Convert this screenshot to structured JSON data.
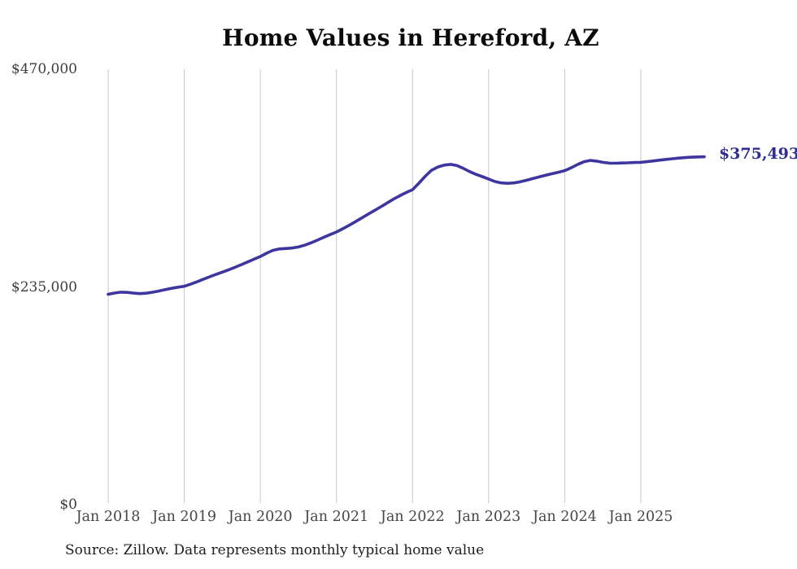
{
  "chart": {
    "title": "Home Values in Hereford, AZ",
    "source": "Source: Zillow. Data represents monthly typical home value",
    "end_label": "$375,493",
    "colors": {
      "line": "#3d36a0",
      "end_label_text": "#322e91",
      "grid": "#c9c9c9",
      "y_axis_text": "#3d3d3d",
      "x_axis_text": "#464646",
      "title_text": "#0a0a0a",
      "source_text": "#1d1d1d",
      "background": "#ffffff"
    }
  },
  "chart_data": {
    "type": "line",
    "title": "Home Values in Hereford, AZ",
    "frequency": "monthly",
    "x_start": "2018-01",
    "x_end": "2025-11",
    "x_tick_labels": [
      "Jan 2018",
      "Jan 2019",
      "Jan 2020",
      "Jan 2021",
      "Jan 2022",
      "Jan 2023",
      "Jan 2024",
      "Jan 2025"
    ],
    "y_ticks": [
      0,
      235000,
      470000
    ],
    "y_tick_labels": [
      "$0",
      "$235,000",
      "$470,000"
    ],
    "ylim": [
      0,
      470000
    ],
    "grid": "vertical-only",
    "legend": "none",
    "final_value": 375493,
    "final_value_label": "$375,493",
    "series": [
      {
        "name": "Typical home value",
        "values": [
          227100,
          228400,
          229400,
          229100,
          228300,
          227800,
          228200,
          229300,
          230600,
          232100,
          233500,
          234700,
          235700,
          238000,
          240500,
          243300,
          246000,
          248500,
          251000,
          253500,
          256200,
          259100,
          262000,
          265000,
          267900,
          271500,
          274500,
          276000,
          276500,
          277000,
          278100,
          280100,
          282600,
          285500,
          288600,
          291500,
          294300,
          297800,
          301500,
          305500,
          309500,
          313500,
          317500,
          321500,
          325700,
          329800,
          333500,
          336900,
          340000,
          347000,
          354500,
          361000,
          364500,
          366500,
          367300,
          366000,
          363000,
          359500,
          356500,
          354000,
          351500,
          348800,
          347300,
          346800,
          347300,
          348500,
          350200,
          352000,
          353800,
          355500,
          357200,
          358800,
          360500,
          363500,
          367000,
          370000,
          371500,
          370800,
          369500,
          368600,
          368500,
          368800,
          369000,
          369300,
          369500,
          370200,
          371000,
          371900,
          372700,
          373400,
          374100,
          374600,
          375000,
          375300,
          375493
        ]
      }
    ]
  }
}
